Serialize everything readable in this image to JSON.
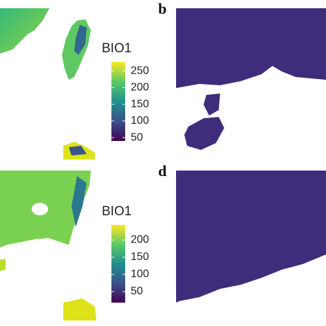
{
  "panel_labels": [
    "b",
    "d"
  ],
  "colorbars": [
    {
      "title": "BIO1",
      "lim": [
        40,
        277
      ],
      "ticks": [
        50,
        100,
        150,
        200,
        250
      ]
    },
    {
      "title": "BIO1",
      "lim": [
        18,
        244
      ],
      "ticks": [
        50,
        100,
        150,
        200
      ]
    }
  ]
}
